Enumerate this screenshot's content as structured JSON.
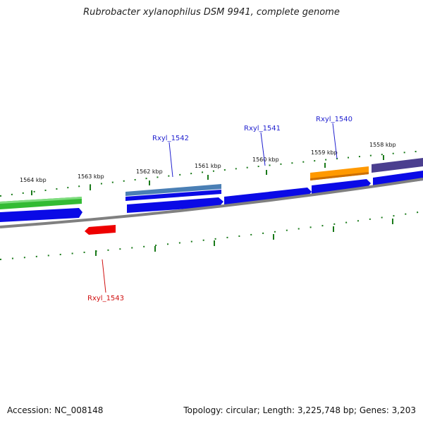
{
  "title": "Rubrobacter xylanophilus DSM 9941, complete genome",
  "footer": {
    "accession": "Accession: NC_008148",
    "summary": "Topology: circular; Length: 3,225,748 bp; Genes: 3,203"
  },
  "kbp_labels": [
    "1564 kbp",
    "1563 kbp",
    "1562 kbp",
    "1561 kbp",
    "1560 kbp",
    "1559 kbp",
    "1558 kbp"
  ],
  "gene_labels": [
    {
      "name": "Rxyl_1542",
      "color": "#1f1fcf"
    },
    {
      "name": "Rxyl_1541",
      "color": "#1f1fcf"
    },
    {
      "name": "Rxyl_1540",
      "color": "#1f1fcf"
    },
    {
      "name": "Rxyl_1543",
      "color": "#d01010"
    }
  ],
  "colors": {
    "backbone": "#808080",
    "ticks": "#1a7a1a",
    "cds_forward": "#0a0ae6",
    "cds_reverse": "#ee0000",
    "feature_green": "#33bb33",
    "feature_steelblue": "#4a7fb5",
    "feature_orange": "#ff9900",
    "feature_purple": "#4b3f8f"
  }
}
